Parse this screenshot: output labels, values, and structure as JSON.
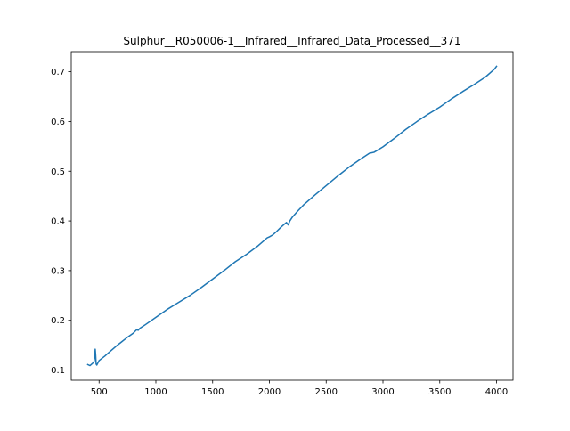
{
  "chart_data": {
    "type": "line",
    "title": "Sulphur__R050006-1__Infrared__Infrared_Data_Processed__371",
    "xlabel": "",
    "ylabel": "",
    "xlim": [
      255,
      4145
    ],
    "ylim": [
      0.0795,
      0.7405
    ],
    "grid": false,
    "legend": "none",
    "x_ticks": [
      500,
      1000,
      1500,
      2000,
      2500,
      3000,
      3500,
      4000
    ],
    "x_tick_labels": [
      "500",
      "1000",
      "1500",
      "2000",
      "2500",
      "3000",
      "3500",
      "4000"
    ],
    "y_ticks": [
      0.1,
      0.2,
      0.3,
      0.4,
      0.5,
      0.6,
      0.7
    ],
    "y_tick_labels": [
      "0.1",
      "0.2",
      "0.3",
      "0.4",
      "0.5",
      "0.6",
      "0.7"
    ],
    "series": [
      {
        "color": "#1f77b4",
        "x": [
          400,
          420,
          440,
          455,
          462,
          466,
          470,
          474,
          480,
          500,
          550,
          600,
          650,
          700,
          750,
          800,
          830,
          845,
          860,
          900,
          1000,
          1100,
          1200,
          1300,
          1400,
          1500,
          1600,
          1700,
          1800,
          1900,
          1950,
          1980,
          2000,
          2030,
          2060,
          2100,
          2130,
          2150,
          2165,
          2180,
          2200,
          2250,
          2300,
          2400,
          2500,
          2600,
          2700,
          2800,
          2880,
          2920,
          2950,
          3000,
          3100,
          3200,
          3300,
          3400,
          3500,
          3600,
          3700,
          3800,
          3900,
          3980,
          4000
        ],
        "y": [
          0.111,
          0.109,
          0.113,
          0.116,
          0.128,
          0.142,
          0.13,
          0.112,
          0.11,
          0.119,
          0.128,
          0.138,
          0.148,
          0.157,
          0.166,
          0.174,
          0.181,
          0.18,
          0.184,
          0.19,
          0.206,
          0.222,
          0.236,
          0.25,
          0.266,
          0.283,
          0.3,
          0.318,
          0.333,
          0.35,
          0.36,
          0.366,
          0.368,
          0.372,
          0.378,
          0.387,
          0.393,
          0.397,
          0.392,
          0.4,
          0.407,
          0.42,
          0.432,
          0.452,
          0.471,
          0.49,
          0.508,
          0.524,
          0.536,
          0.538,
          0.542,
          0.549,
          0.566,
          0.584,
          0.6,
          0.615,
          0.629,
          0.645,
          0.66,
          0.674,
          0.689,
          0.705,
          0.711
        ]
      }
    ]
  }
}
